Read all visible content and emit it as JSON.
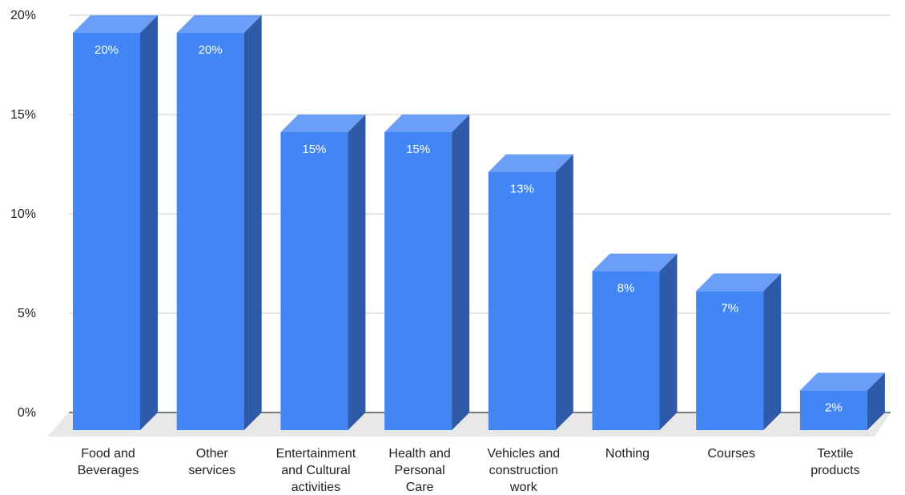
{
  "chart_data": {
    "type": "bar",
    "style": "3d-column",
    "title": "",
    "xlabel": "",
    "ylabel": "",
    "ylim": [
      0,
      20
    ],
    "y_ticks": [
      0,
      5,
      10,
      15,
      20
    ],
    "y_tick_labels": [
      "0%",
      "5%",
      "10%",
      "15%",
      "20%"
    ],
    "grid": true,
    "legend": "none",
    "categories": [
      [
        "Food and",
        "Beverages"
      ],
      [
        "Other",
        "services"
      ],
      [
        "Entertainment",
        "and Cultural",
        "activities"
      ],
      [
        "Health and",
        "Personal",
        "Care"
      ],
      [
        "Vehicles and",
        "construction",
        "work"
      ],
      [
        "Nothing"
      ],
      [
        "Courses"
      ],
      [
        "Textile",
        "products"
      ]
    ],
    "values": [
      20,
      20,
      15,
      15,
      13,
      8,
      7,
      2
    ],
    "data_labels": [
      "20%",
      "20%",
      "15%",
      "15%",
      "13%",
      "8%",
      "7%",
      "2%"
    ],
    "colors": {
      "front": "#4285f4",
      "top": "#6b9ff7",
      "side": "#2e5aa8",
      "floor": "#e8e8e8",
      "grid": "#cccccc",
      "axis": "#333333"
    }
  }
}
